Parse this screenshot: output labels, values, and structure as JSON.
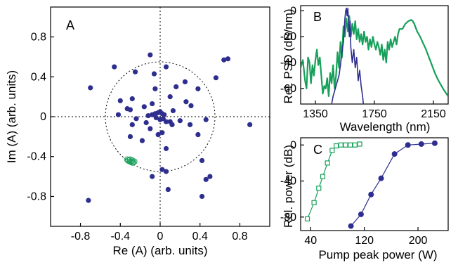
{
  "chart_data": [
    {
      "panel_label": "A",
      "type": "scatter",
      "xlabel": "Re (A) (arb. units)",
      "ylabel": "Im (A) (arb. units)",
      "xlim": [
        -1.1,
        1.1
      ],
      "ylim": [
        -1.1,
        1.1
      ],
      "x_ticks": [
        "-0.8",
        "-0.4",
        "0",
        "0.4",
        "0.8"
      ],
      "x_tick_values": [
        -0.8,
        -0.4,
        0,
        0.4,
        0.8
      ],
      "y_ticks": [
        "0.8",
        "0.4",
        "0",
        "-0.4",
        "-0.8"
      ],
      "y_tick_values": [
        0.8,
        0.4,
        0,
        -0.4,
        -0.8
      ],
      "reference_circle_radius": 0.55,
      "series": [
        {
          "color": "#2e2e8f",
          "marker": "filled-circle",
          "points": [
            [
              -0.7,
              0.29
            ],
            [
              -0.46,
              0.5
            ],
            [
              -0.25,
              0.45
            ],
            [
              -0.1,
              0.62
            ],
            [
              -0.06,
              0.43
            ],
            [
              0.06,
              0.5
            ],
            [
              -0.28,
              0.18
            ],
            [
              -0.05,
              0.28
            ],
            [
              0.16,
              0.3
            ],
            [
              0.25,
              0.35
            ],
            [
              0.38,
              0.28
            ],
            [
              0.56,
              0.39
            ],
            [
              0.64,
              0.57
            ],
            [
              0.68,
              0.58
            ],
            [
              -0.4,
              0.16
            ],
            [
              -0.33,
              0.08
            ],
            [
              -0.3,
              0.07
            ],
            [
              -0.16,
              0.1
            ],
            [
              -0.08,
              0.13
            ],
            [
              0.1,
              0.2
            ],
            [
              0.13,
              0.06
            ],
            [
              0.26,
              0.15
            ],
            [
              0.31,
              0.11
            ],
            [
              -0.42,
              0.02
            ],
            [
              -0.24,
              -0.02
            ],
            [
              -0.12,
              0.01
            ],
            [
              -0.08,
              0.02
            ],
            [
              -0.05,
              0.03
            ],
            [
              -0.02,
              0.04
            ],
            [
              0.0,
              0.05
            ],
            [
              0.02,
              0.03
            ],
            [
              0.04,
              0.02
            ],
            [
              -0.04,
              -0.01
            ],
            [
              0.0,
              -0.03
            ],
            [
              0.03,
              -0.02
            ],
            [
              0.06,
              -0.05
            ],
            [
              0.1,
              -0.05
            ],
            [
              0.12,
              -0.08
            ],
            [
              0.2,
              -0.04
            ],
            [
              0.3,
              -0.08
            ],
            [
              0.46,
              -0.03
            ],
            [
              0.9,
              -0.08
            ],
            [
              -0.28,
              -0.08
            ],
            [
              -0.14,
              -0.06
            ],
            [
              -0.1,
              -0.12
            ],
            [
              -0.3,
              -0.2
            ],
            [
              -0.18,
              -0.24
            ],
            [
              -0.02,
              -0.18
            ],
            [
              0.02,
              -0.16
            ],
            [
              0.38,
              -0.18
            ],
            [
              0.06,
              -0.32
            ],
            [
              0.42,
              -0.44
            ],
            [
              0.02,
              -0.53
            ],
            [
              0.06,
              -0.55
            ],
            [
              0.5,
              -0.6
            ],
            [
              0.46,
              -0.63
            ],
            [
              -0.08,
              -0.6
            ],
            [
              0.08,
              -0.73
            ],
            [
              0.42,
              -0.8
            ],
            [
              -0.72,
              -0.84
            ]
          ]
        },
        {
          "color": "#17a05a",
          "marker": "open-circle",
          "points": [
            [
              -0.33,
              -0.43
            ],
            [
              -0.32,
              -0.44
            ],
            [
              -0.31,
              -0.44
            ],
            [
              -0.3,
              -0.45
            ],
            [
              -0.29,
              -0.45
            ],
            [
              -0.28,
              -0.46
            ],
            [
              -0.27,
              -0.46
            ],
            [
              -0.3,
              -0.43
            ],
            [
              -0.28,
              -0.44
            ],
            [
              -0.26,
              -0.45
            ]
          ]
        }
      ]
    },
    {
      "panel_label": "B",
      "type": "line",
      "xlabel": "Wavelength (nm)",
      "ylabel": "Rel. PSD (dB/nm)",
      "xlim": [
        1250,
        2250
      ],
      "ylim": [
        -72,
        4
      ],
      "x_ticks": [
        "1350",
        "1750",
        "2150"
      ],
      "x_tick_values": [
        1350,
        1750,
        2150
      ],
      "y_ticks": [
        "0",
        "-20",
        "-40",
        "-60"
      ],
      "y_tick_values": [
        0,
        -20,
        -40,
        -60
      ],
      "series": [
        {
          "color": "#17a05a",
          "x": [
            1250,
            1265,
            1280,
            1290,
            1300,
            1310,
            1320,
            1330,
            1340,
            1350,
            1360,
            1370,
            1380,
            1390,
            1400,
            1410,
            1420,
            1430,
            1440,
            1450,
            1460,
            1470,
            1480,
            1490,
            1500,
            1510,
            1520,
            1530,
            1540,
            1550,
            1560,
            1570,
            1580,
            1590,
            1600,
            1610,
            1620,
            1630,
            1640,
            1650,
            1660,
            1670,
            1680,
            1690,
            1700,
            1710,
            1720,
            1730,
            1740,
            1750,
            1760,
            1770,
            1780,
            1790,
            1800,
            1810,
            1820,
            1830,
            1840,
            1850,
            1860,
            1870,
            1880,
            1890,
            1900,
            1910,
            1920,
            1940,
            1960,
            1980,
            2000,
            2010,
            2020,
            2030,
            2040,
            2060,
            2080,
            2100,
            2120,
            2140,
            2160,
            2180,
            2200,
            2220,
            2250
          ],
          "y": [
            -44,
            -38,
            -54,
            -60,
            -36,
            -40,
            -56,
            -42,
            -50,
            -38,
            -30,
            -42,
            -36,
            -50,
            -64,
            -58,
            -60,
            -52,
            -66,
            -48,
            -56,
            -42,
            -60,
            -50,
            -32,
            -44,
            -24,
            -36,
            -12,
            -20,
            -6,
            -16,
            -4,
            -20,
            -10,
            -18,
            -8,
            -22,
            -14,
            -24,
            -18,
            -26,
            -16,
            -24,
            -20,
            -30,
            -22,
            -28,
            -20,
            -26,
            -30,
            -24,
            -28,
            -34,
            -26,
            -38,
            -30,
            -40,
            -24,
            -30,
            -22,
            -28,
            -24,
            -20,
            -26,
            -18,
            -14,
            -14,
            -10,
            -8,
            -7,
            -8,
            -10,
            -13,
            -16,
            -20,
            -25,
            -30,
            -36,
            -42,
            -48,
            -53,
            -57,
            -61,
            -66
          ]
        },
        {
          "color": "#2e2e8f",
          "x": [
            1460,
            1470,
            1480,
            1490,
            1500,
            1510,
            1520,
            1530,
            1540,
            1545,
            1550,
            1555,
            1560,
            1565,
            1570,
            1575,
            1580,
            1585,
            1590,
            1600,
            1610,
            1620,
            1630,
            1640,
            1650,
            1660,
            1670,
            1675
          ],
          "y": [
            -72,
            -66,
            -62,
            -58,
            -54,
            -50,
            -42,
            -32,
            -24,
            -16,
            -6,
            0,
            2,
            -4,
            2,
            -10,
            -20,
            -8,
            -28,
            -40,
            -30,
            -44,
            -36,
            -54,
            -46,
            -58,
            -66,
            -72
          ]
        }
      ]
    },
    {
      "panel_label": "C",
      "type": "line",
      "xlabel": "Pump peak power (W)",
      "ylabel": "Rel. power (dB)",
      "xlim": [
        25,
        245
      ],
      "ylim": [
        -95,
        8
      ],
      "x_ticks": [
        "40",
        "120",
        "200"
      ],
      "x_tick_values": [
        40,
        120,
        200
      ],
      "y_ticks": [
        "0",
        "-40",
        "-80"
      ],
      "y_tick_values": [
        0,
        -40,
        -80
      ],
      "series": [
        {
          "color": "#17a05a",
          "marker": "open-square",
          "x": [
            35,
            45,
            52,
            58,
            65,
            72,
            78,
            85,
            92,
            99,
            106,
            113
          ],
          "y": [
            -82,
            -64,
            -48,
            -35,
            -20,
            -6,
            -1,
            0,
            0,
            0,
            0,
            1
          ]
        },
        {
          "color": "#2e2e8f",
          "marker": "filled-circle",
          "x": [
            100,
            115,
            130,
            145,
            165,
            185,
            205,
            225
          ],
          "y": [
            -90,
            -77,
            -55,
            -37,
            -10,
            0,
            1,
            2
          ]
        }
      ]
    }
  ]
}
